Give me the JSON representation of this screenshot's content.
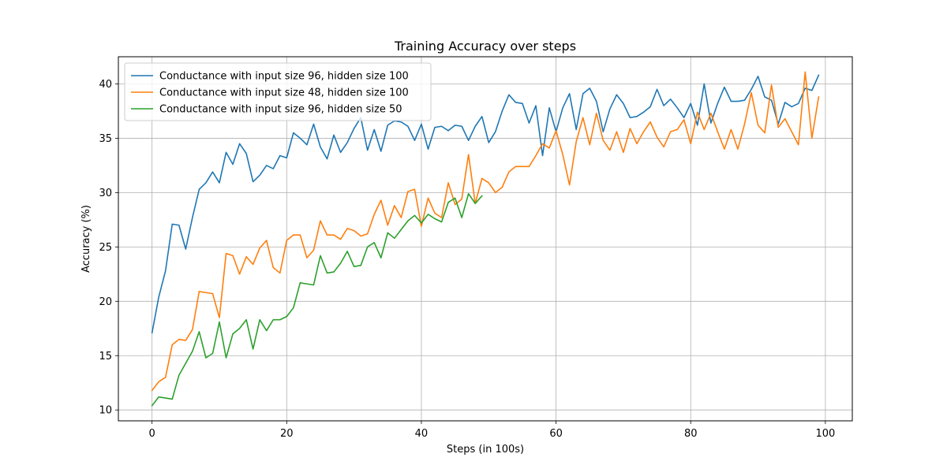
{
  "chart_data": {
    "type": "line",
    "title": "Training Accuracy over steps",
    "xlabel": "Steps (in 100s)",
    "ylabel": "Accuracy (%)",
    "xlim": [
      -5,
      104
    ],
    "ylim": [
      9,
      42.5
    ],
    "xticks": [
      0,
      20,
      40,
      60,
      80,
      100
    ],
    "yticks": [
      10,
      15,
      20,
      25,
      30,
      35,
      40
    ],
    "grid": true,
    "legend_position": "upper-left",
    "series": [
      {
        "name": "Conductance with input size 96, hidden size 100",
        "color": "#1f77b4",
        "x": [
          0,
          1,
          2,
          3,
          4,
          5,
          6,
          7,
          8,
          9,
          10,
          11,
          12,
          13,
          14,
          15,
          16,
          17,
          18,
          19,
          20,
          21,
          22,
          23,
          24,
          25,
          26,
          27,
          28,
          29,
          30,
          31,
          32,
          33,
          34,
          35,
          36,
          37,
          38,
          39,
          40,
          41,
          42,
          43,
          44,
          45,
          46,
          47,
          48,
          49,
          50,
          51,
          52,
          53,
          54,
          55,
          56,
          57,
          58,
          59,
          60,
          61,
          62,
          63,
          64,
          65,
          66,
          67,
          68,
          69,
          70,
          71,
          72,
          73,
          74,
          75,
          76,
          77,
          78,
          79,
          80,
          81,
          82,
          83,
          84,
          85,
          86,
          87,
          88,
          89,
          90,
          91,
          92,
          93,
          94,
          95,
          96,
          97,
          98,
          99
        ],
        "values": [
          17.1,
          20.4,
          22.8,
          27.1,
          27.0,
          24.8,
          27.7,
          30.3,
          30.9,
          31.9,
          30.9,
          33.7,
          32.6,
          34.5,
          33.6,
          31.0,
          31.6,
          32.5,
          32.2,
          33.4,
          33.2,
          35.5,
          35.0,
          34.4,
          36.3,
          34.2,
          33.1,
          35.3,
          33.7,
          34.6,
          35.9,
          36.9,
          33.9,
          35.8,
          33.8,
          36.2,
          36.6,
          36.5,
          36.1,
          34.8,
          36.3,
          34.0,
          36.0,
          36.1,
          35.7,
          36.2,
          36.1,
          34.8,
          36.1,
          37.0,
          34.6,
          35.6,
          37.5,
          39.0,
          38.3,
          38.2,
          36.4,
          38.0,
          33.4,
          37.8,
          35.6,
          37.8,
          39.1,
          35.8,
          39.1,
          39.6,
          38.4,
          35.6,
          37.7,
          39.0,
          38.2,
          36.9,
          37.0,
          37.4,
          37.9,
          39.5,
          38.0,
          38.6,
          37.8,
          36.9,
          38.2,
          36.2,
          40.0,
          36.4,
          38.2,
          39.7,
          38.4,
          38.4,
          38.5,
          39.5,
          40.7,
          38.8,
          38.5,
          36.3,
          38.3,
          37.9,
          38.2,
          39.6,
          39.4,
          40.8
        ]
      },
      {
        "name": "Conductance with input size 48, hidden size 100",
        "color": "#ff7f0e",
        "x": [
          0,
          1,
          2,
          3,
          4,
          5,
          6,
          7,
          8,
          9,
          10,
          11,
          12,
          13,
          14,
          15,
          16,
          17,
          18,
          19,
          20,
          21,
          22,
          23,
          24,
          25,
          26,
          27,
          28,
          29,
          30,
          31,
          32,
          33,
          34,
          35,
          36,
          37,
          38,
          39,
          40,
          41,
          42,
          43,
          44,
          45,
          46,
          47,
          48,
          49,
          50,
          51,
          52,
          53,
          54,
          55,
          56,
          57,
          58,
          59,
          60,
          61,
          62,
          63,
          64,
          65,
          66,
          67,
          68,
          69,
          70,
          71,
          72,
          73,
          74,
          75,
          76,
          77,
          78,
          79,
          80,
          81,
          82,
          83,
          84,
          85,
          86,
          87,
          88,
          89,
          90,
          91,
          92,
          93,
          94,
          95,
          96,
          97,
          98,
          99
        ],
        "values": [
          11.8,
          12.6,
          13.0,
          16.0,
          16.5,
          16.4,
          17.4,
          20.9,
          20.8,
          20.7,
          18.5,
          24.4,
          24.2,
          22.5,
          24.1,
          23.4,
          24.9,
          25.6,
          23.1,
          22.6,
          25.6,
          26.1,
          26.1,
          24.0,
          24.7,
          27.4,
          26.1,
          26.1,
          25.7,
          26.7,
          26.5,
          26.0,
          26.2,
          28.0,
          29.3,
          27.0,
          28.8,
          27.7,
          30.1,
          30.3,
          26.9,
          29.5,
          28.1,
          27.7,
          30.9,
          28.9,
          29.4,
          33.5,
          29.0,
          31.3,
          30.9,
          30.0,
          30.5,
          31.9,
          32.4,
          32.4,
          32.4,
          33.4,
          34.5,
          34.1,
          35.7,
          33.5,
          30.7,
          34.7,
          36.9,
          34.4,
          37.3,
          34.8,
          33.9,
          35.6,
          33.7,
          35.9,
          34.5,
          35.6,
          36.5,
          35.1,
          34.2,
          35.6,
          35.8,
          36.7,
          34.5,
          37.4,
          35.8,
          37.3,
          35.6,
          34.0,
          35.8,
          34.0,
          36.3,
          39.2,
          36.2,
          35.5,
          39.9,
          36.0,
          36.8,
          35.6,
          34.4,
          41.1,
          35.0,
          38.8
        ]
      },
      {
        "name": "Conductance with input size 96, hidden size 50",
        "color": "#2ca02c",
        "x": [
          0,
          1,
          2,
          3,
          4,
          5,
          6,
          7,
          8,
          9,
          10,
          11,
          12,
          13,
          14,
          15,
          16,
          17,
          18,
          19,
          20,
          21,
          22,
          23,
          24,
          25,
          26,
          27,
          28,
          29,
          30,
          31,
          32,
          33,
          34,
          35,
          36,
          37,
          38,
          39,
          40,
          41,
          42,
          43,
          44,
          45,
          46,
          47,
          48,
          49
        ],
        "values": [
          10.4,
          11.2,
          11.1,
          11.0,
          13.2,
          14.3,
          15.4,
          17.2,
          14.8,
          15.2,
          18.1,
          14.8,
          17.0,
          17.5,
          18.3,
          15.6,
          18.3,
          17.3,
          18.3,
          18.3,
          18.6,
          19.4,
          21.7,
          21.6,
          21.5,
          24.2,
          22.6,
          22.7,
          23.5,
          24.6,
          23.2,
          23.3,
          25.0,
          25.4,
          24.0,
          26.3,
          25.8,
          26.6,
          27.4,
          27.9,
          27.2,
          28.0,
          27.6,
          27.3,
          29.1,
          29.5,
          27.7,
          29.9,
          29.0,
          29.7
        ]
      }
    ]
  }
}
